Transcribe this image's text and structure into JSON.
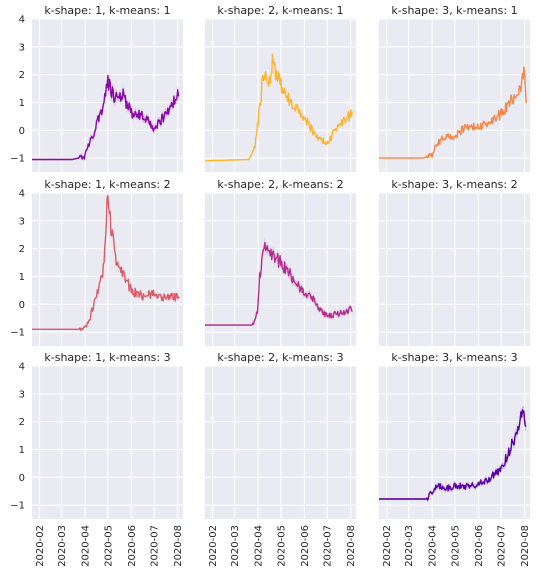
{
  "figure": {
    "y_tick_labels": [
      "4",
      "3",
      "2",
      "1",
      "0",
      "−1"
    ],
    "x_tick_labels": [
      "2020-02",
      "2020-03",
      "2020-04",
      "2020-05",
      "2020-06",
      "2020-07",
      "2020-08"
    ]
  },
  "chart_data": [
    {
      "type": "line",
      "title": "k-shape: 1, k-means: 1",
      "color": "#8b0aa5",
      "band": true,
      "ylim": [
        -1.5,
        4
      ],
      "x": [
        "2020-01-22",
        "2020-03-15",
        "2020-03-31",
        "2020-04-15",
        "2020-04-25",
        "2020-05-01",
        "2020-05-10",
        "2020-05-20",
        "2020-06-01",
        "2020-06-15",
        "2020-07-01",
        "2020-07-15",
        "2020-07-25",
        "2020-08-03"
      ],
      "y": [
        -1.05,
        -1.05,
        -0.95,
        0.1,
        0.9,
        1.7,
        1.2,
        1.3,
        0.6,
        0.5,
        0.1,
        0.5,
        0.9,
        1.35
      ]
    },
    {
      "type": "line",
      "title": "k-shape: 2, k-means: 1",
      "color": "#fdb42f",
      "band": false,
      "ylim": [
        -1.5,
        4
      ],
      "x": [
        "2020-01-22",
        "2020-03-20",
        "2020-03-28",
        "2020-04-01",
        "2020-04-08",
        "2020-04-15",
        "2020-04-20",
        "2020-05-01",
        "2020-05-15",
        "2020-06-01",
        "2020-06-15",
        "2020-07-01",
        "2020-07-15",
        "2020-08-03"
      ],
      "y": [
        -1.1,
        -1.05,
        -0.6,
        0.3,
        2.1,
        1.7,
        2.4,
        1.6,
        0.9,
        0.5,
        -0.2,
        -0.5,
        0.2,
        0.6
      ]
    },
    {
      "type": "line",
      "title": "k-shape: 3, k-means: 1",
      "color": "#f48849",
      "band": false,
      "ylim": [
        -1.5,
        4
      ],
      "x": [
        "2020-01-22",
        "2020-03-20",
        "2020-04-01",
        "2020-04-05",
        "2020-04-15",
        "2020-05-01",
        "2020-05-15",
        "2020-06-01",
        "2020-06-15",
        "2020-07-01",
        "2020-07-15",
        "2020-07-25",
        "2020-08-01",
        "2020-08-03"
      ],
      "y": [
        -1.0,
        -1.0,
        -0.9,
        -0.6,
        -0.3,
        -0.2,
        0.1,
        0.1,
        0.3,
        0.6,
        1.1,
        1.4,
        2.2,
        1.0
      ]
    },
    {
      "type": "line",
      "title": "k-shape: 1, k-means: 2",
      "color": "#db5c68",
      "band": false,
      "ylim": [
        -1.5,
        4
      ],
      "x": [
        "2020-01-22",
        "2020-03-25",
        "2020-04-05",
        "2020-04-15",
        "2020-04-25",
        "2020-04-28",
        "2020-05-01",
        "2020-05-05",
        "2020-05-12",
        "2020-05-20",
        "2020-06-01",
        "2020-06-15",
        "2020-07-01",
        "2020-07-15",
        "2020-08-03"
      ],
      "y": [
        -0.9,
        -0.9,
        -0.7,
        0.2,
        1.2,
        2.5,
        4.0,
        2.8,
        1.6,
        1.2,
        0.5,
        0.3,
        0.4,
        0.2,
        0.3
      ]
    },
    {
      "type": "line",
      "title": "k-shape: 2, k-means: 2",
      "color": "#b42e8d",
      "band": true,
      "ylim": [
        -1.5,
        4
      ],
      "x": [
        "2020-01-22",
        "2020-03-25",
        "2020-03-31",
        "2020-04-03",
        "2020-04-10",
        "2020-04-20",
        "2020-05-01",
        "2020-05-10",
        "2020-05-20",
        "2020-06-01",
        "2020-06-10",
        "2020-06-20",
        "2020-07-01",
        "2020-07-15",
        "2020-08-03"
      ],
      "y": [
        -0.75,
        -0.75,
        -0.3,
        1.0,
        2.2,
        1.8,
        1.5,
        1.2,
        0.8,
        0.4,
        0.3,
        -0.2,
        -0.4,
        -0.35,
        -0.15
      ]
    },
    {
      "type": "line",
      "title": "k-shape: 3, k-means: 2",
      "color": "#6a00a8",
      "band": false,
      "ylim": [
        -1.5,
        4
      ],
      "x": [],
      "y": []
    },
    {
      "type": "line",
      "title": "k-shape: 1, k-means: 3",
      "color": "#6a00a8",
      "band": false,
      "ylim": [
        -1.5,
        4
      ],
      "x": [],
      "y": []
    },
    {
      "type": "line",
      "title": "k-shape: 2, k-means: 3",
      "color": "#6a00a8",
      "band": false,
      "ylim": [
        -1.5,
        4
      ],
      "x": [],
      "y": []
    },
    {
      "type": "line",
      "title": "k-shape: 3, k-means: 3",
      "color": "#5b02a3",
      "band": true,
      "ylim": [
        -1.5,
        4
      ],
      "x": [
        "2020-01-22",
        "2020-03-25",
        "2020-04-01",
        "2020-04-10",
        "2020-04-20",
        "2020-05-01",
        "2020-05-15",
        "2020-06-01",
        "2020-06-15",
        "2020-07-01",
        "2020-07-10",
        "2020-07-20",
        "2020-07-28",
        "2020-08-03"
      ],
      "y": [
        -0.78,
        -0.78,
        -0.5,
        -0.3,
        -0.4,
        -0.3,
        -0.35,
        -0.25,
        -0.05,
        0.3,
        0.8,
        1.5,
        2.2,
        2.1
      ]
    }
  ]
}
